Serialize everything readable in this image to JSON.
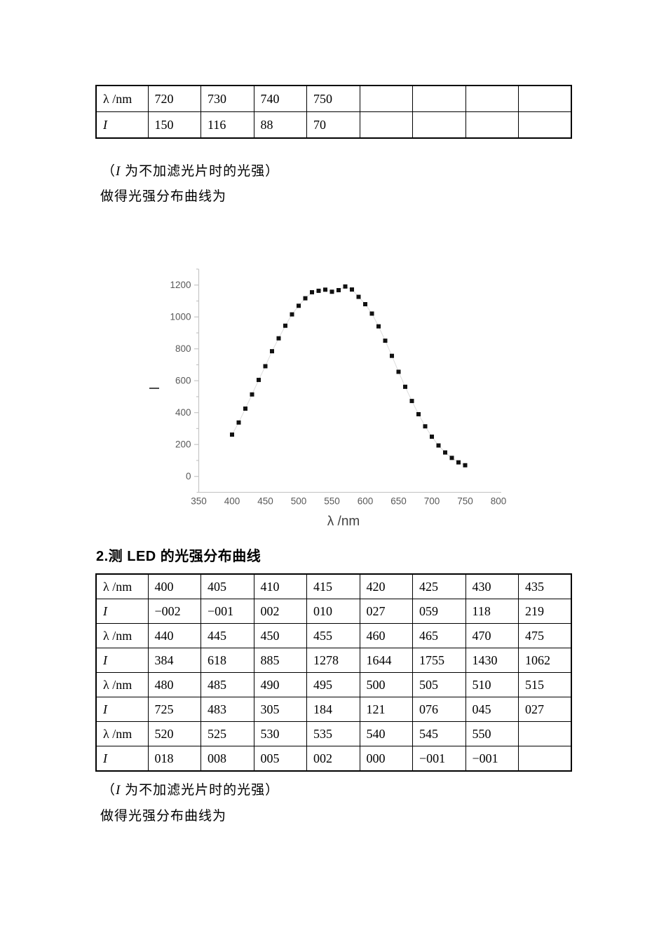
{
  "texts": {
    "note_open": "（",
    "note_i": "I",
    "note_rest": " 为不加滤光片时的光强）",
    "curve_caption": "做得光强分布曲线为",
    "heading2": "2.测 LED 的光强分布曲线"
  },
  "tables": {
    "top": {
      "rows": [
        [
          "λ /nm",
          "720",
          "730",
          "740",
          "750",
          "",
          "",
          "",
          ""
        ],
        [
          "I",
          "150",
          "116",
          "88",
          "70",
          "",
          "",
          "",
          ""
        ]
      ]
    },
    "led": {
      "rows": [
        [
          "λ /nm",
          "400",
          "405",
          "410",
          "415",
          "420",
          "425",
          "430",
          "435"
        ],
        [
          "I",
          "−002",
          "−001",
          "002",
          "010",
          "027",
          "059",
          "118",
          "219"
        ],
        [
          "λ /nm",
          "440",
          "445",
          "450",
          "455",
          "460",
          "465",
          "470",
          "475"
        ],
        [
          "I",
          "384",
          "618",
          "885",
          "1278",
          "1644",
          "1755",
          "1430",
          "1062"
        ],
        [
          "λ /nm",
          "480",
          "485",
          "490",
          "495",
          "500",
          "505",
          "510",
          "515"
        ],
        [
          "I",
          "725",
          "483",
          "305",
          "184",
          "121",
          "076",
          "045",
          "027"
        ],
        [
          "λ /nm",
          "520",
          "525",
          "530",
          "535",
          "540",
          "545",
          "550",
          ""
        ],
        [
          "I",
          "018",
          "008",
          "005",
          "002",
          "000",
          "−001",
          "−001",
          ""
        ]
      ]
    }
  },
  "chart_data": {
    "type": "scatter",
    "title": "",
    "xlabel": "λ /nm",
    "ylabel": "I",
    "x": [
      400,
      410,
      420,
      430,
      440,
      450,
      460,
      470,
      480,
      490,
      500,
      510,
      520,
      530,
      540,
      550,
      560,
      570,
      580,
      590,
      600,
      610,
      620,
      630,
      640,
      650,
      660,
      670,
      680,
      690,
      700,
      710,
      720,
      730,
      740,
      750
    ],
    "y": [
      262,
      338,
      425,
      514,
      605,
      691,
      785,
      866,
      945,
      1016,
      1070,
      1117,
      1155,
      1164,
      1171,
      1158,
      1168,
      1191,
      1172,
      1126,
      1080,
      1021,
      941,
      851,
      756,
      656,
      562,
      473,
      390,
      314,
      249,
      194,
      150,
      116,
      88,
      70
    ],
    "xlim": [
      350,
      800
    ],
    "ylim": [
      -100,
      1300
    ],
    "xticks": [
      350,
      400,
      450,
      500,
      550,
      600,
      650,
      700,
      750,
      800
    ],
    "yticks": [
      0,
      200,
      400,
      600,
      800,
      1000,
      1200
    ],
    "yticks_minor": [
      100,
      300,
      500,
      700,
      900,
      1100,
      1300
    ],
    "grid": false,
    "marker": "square",
    "legend": "none",
    "colors": {
      "point": "#111111",
      "connector": "#dcdcdc",
      "axis": "#c6c6c6",
      "tick_label": "#595959",
      "axis_label": "#3f3f3f"
    }
  }
}
